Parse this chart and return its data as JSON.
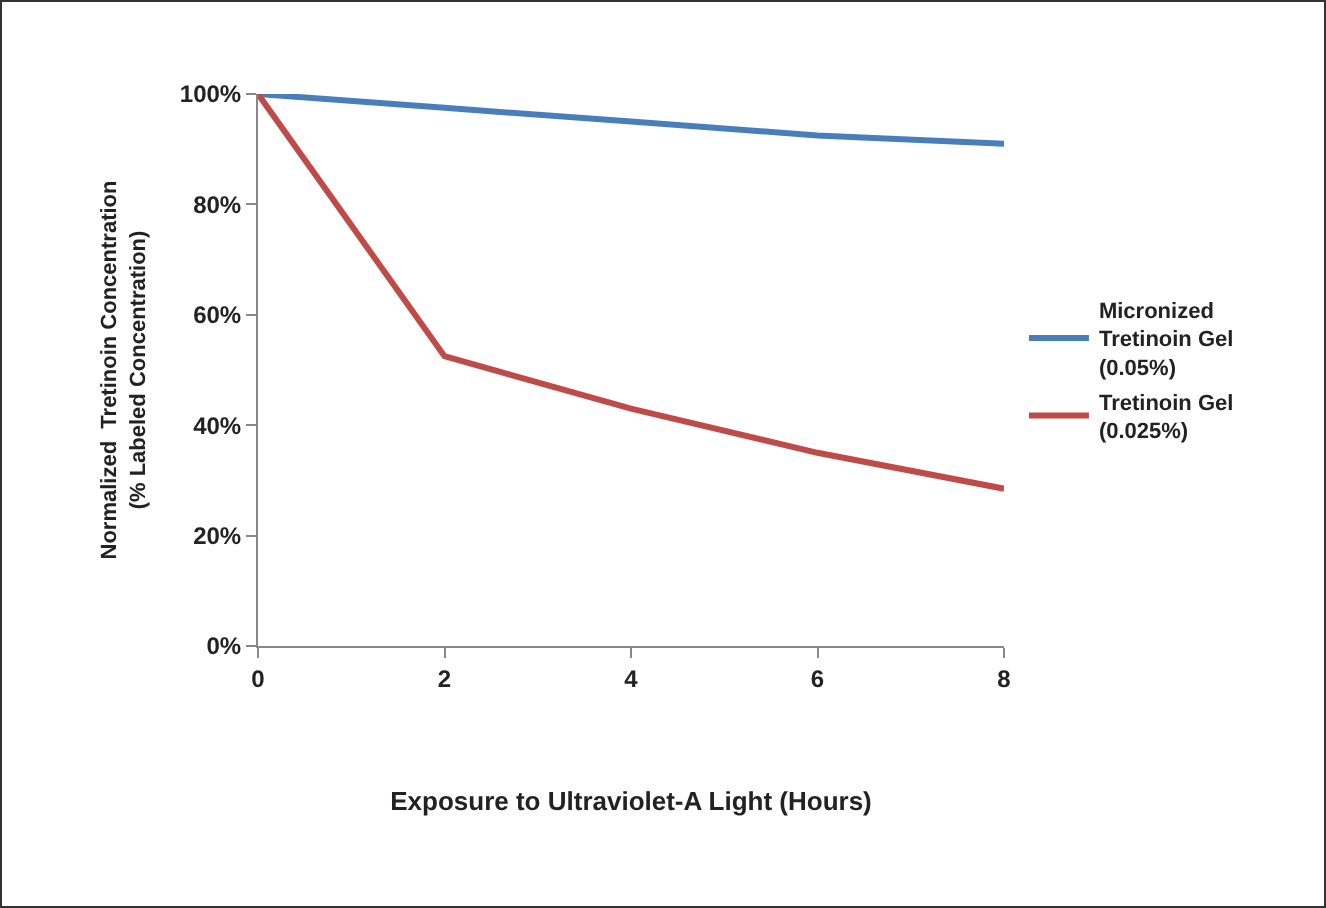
{
  "chart_data": {
    "type": "line",
    "xlabel": "Exposure to Ultraviolet-A Light (Hours)",
    "ylabel": "Normalized  Tretinoin Concentration\n(% Labeled Concentration)",
    "x": [
      0,
      2,
      4,
      6,
      8
    ],
    "series": [
      {
        "name": "Micronized Tretinoin Gel (0.05%)",
        "color": "#4a7ebb",
        "values": [
          100,
          97.5,
          95,
          92.5,
          91
        ]
      },
      {
        "name": "Tretinoin Gel (0.025%)",
        "color": "#be4b48",
        "values": [
          100,
          52.5,
          43,
          35,
          28.5
        ]
      }
    ],
    "xlim": [
      0,
      8
    ],
    "xticks": [
      0,
      2,
      4,
      6,
      8
    ],
    "ylim": [
      0,
      100
    ],
    "yticks": [
      {
        "value": 0,
        "label": "0%"
      },
      {
        "value": 20,
        "label": "20%"
      },
      {
        "value": 40,
        "label": "40%"
      },
      {
        "value": 60,
        "label": "60%"
      },
      {
        "value": 80,
        "label": "80%"
      },
      {
        "value": 100,
        "label": "100%"
      }
    ],
    "grid": false,
    "legend": "right",
    "marker": "none",
    "line_style": "solid"
  }
}
